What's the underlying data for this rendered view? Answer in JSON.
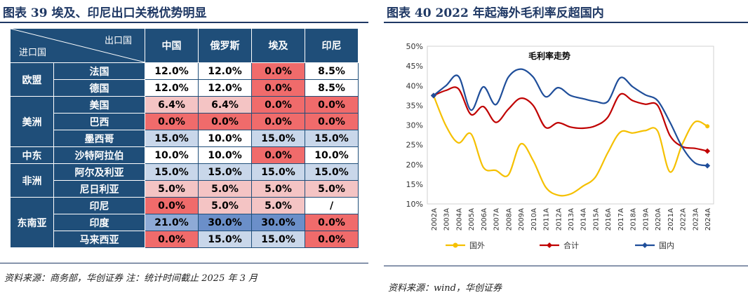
{
  "left": {
    "title": "图表 39   埃及、印尼出口关税优势明显",
    "corner_top": "出口国",
    "corner_bottom": "进口国",
    "columns": [
      "中国",
      "俄罗斯",
      "埃及",
      "印尼"
    ],
    "regions": [
      {
        "name": "欧盟",
        "rows": [
          {
            "country": "法国",
            "cells": [
              {
                "v": "12.0%",
                "c": "white"
              },
              {
                "v": "12.0%",
                "c": "white"
              },
              {
                "v": "0.0%",
                "c": "red"
              },
              {
                "v": "8.5%",
                "c": "white"
              }
            ]
          },
          {
            "country": "德国",
            "cells": [
              {
                "v": "12.0%",
                "c": "white"
              },
              {
                "v": "12.0%",
                "c": "white"
              },
              {
                "v": "0.0%",
                "c": "red"
              },
              {
                "v": "8.5%",
                "c": "white"
              }
            ]
          }
        ]
      },
      {
        "name": "美洲",
        "rows": [
          {
            "country": "美国",
            "cells": [
              {
                "v": "6.4%",
                "c": "pink"
              },
              {
                "v": "6.4%",
                "c": "pink"
              },
              {
                "v": "0.0%",
                "c": "red"
              },
              {
                "v": "0.0%",
                "c": "red"
              }
            ]
          },
          {
            "country": "巴西",
            "cells": [
              {
                "v": "0.0%",
                "c": "red"
              },
              {
                "v": "0.0%",
                "c": "red"
              },
              {
                "v": "0.0%",
                "c": "red"
              },
              {
                "v": "0.0%",
                "c": "red"
              }
            ]
          },
          {
            "country": "墨西哥",
            "cells": [
              {
                "v": "15.0%",
                "c": "lblue"
              },
              {
                "v": "10.0%",
                "c": "white"
              },
              {
                "v": "15.0%",
                "c": "lblue"
              },
              {
                "v": "15.0%",
                "c": "lblue"
              }
            ]
          }
        ]
      },
      {
        "name": "中东",
        "rows": [
          {
            "country": "沙特阿拉伯",
            "cells": [
              {
                "v": "10.0%",
                "c": "white"
              },
              {
                "v": "10.0%",
                "c": "white"
              },
              {
                "v": "0.0%",
                "c": "red"
              },
              {
                "v": "10.0%",
                "c": "white"
              }
            ]
          }
        ]
      },
      {
        "name": "非洲",
        "rows": [
          {
            "country": "阿尔及利亚",
            "cells": [
              {
                "v": "15.0%",
                "c": "lblue"
              },
              {
                "v": "15.0%",
                "c": "lblue"
              },
              {
                "v": "15.0%",
                "c": "lblue"
              },
              {
                "v": "15.0%",
                "c": "lblue"
              }
            ]
          },
          {
            "country": "尼日利亚",
            "cells": [
              {
                "v": "5.0%",
                "c": "pink"
              },
              {
                "v": "5.0%",
                "c": "pink"
              },
              {
                "v": "5.0%",
                "c": "pink"
              },
              {
                "v": "5.0%",
                "c": "pink"
              }
            ]
          }
        ]
      },
      {
        "name": "东南亚",
        "rows": [
          {
            "country": "印尼",
            "cells": [
              {
                "v": "0.0%",
                "c": "red"
              },
              {
                "v": "5.0%",
                "c": "pink"
              },
              {
                "v": "5.0%",
                "c": "pink"
              },
              {
                "v": "/",
                "c": "white"
              }
            ]
          },
          {
            "country": "印度",
            "cells": [
              {
                "v": "21.0%",
                "c": "mblue"
              },
              {
                "v": "30.0%",
                "c": "dblue"
              },
              {
                "v": "30.0%",
                "c": "dblue"
              },
              {
                "v": "0.0%",
                "c": "red"
              }
            ]
          },
          {
            "country": "马来西亚",
            "cells": [
              {
                "v": "0.0%",
                "c": "red"
              },
              {
                "v": "15.0%",
                "c": "lblue"
              },
              {
                "v": "15.0%",
                "c": "lblue"
              },
              {
                "v": "0.0%",
                "c": "red"
              }
            ]
          }
        ]
      }
    ],
    "source": "资料来源：商务部，华创证券  注：统计时间截止 2025 年 3 月"
  },
  "right": {
    "title": "图表 40   2022 年起海外毛利率反超国内",
    "source": "资料来源：wind，华创证券"
  },
  "colors": {
    "navy": "#1f4e79",
    "domestic": "#1f4e9a",
    "total": "#c00000",
    "overseas": "#f5c000"
  },
  "chart_data": {
    "type": "line",
    "title": "毛利率走势",
    "categories": [
      "2002A",
      "2003A",
      "2004A",
      "2005A",
      "2006A",
      "2007A",
      "2008A",
      "2009A",
      "2010A",
      "2011A",
      "2012A",
      "2013A",
      "2014A",
      "2015A",
      "2016A",
      "2017A",
      "2018A",
      "2019A",
      "2020A",
      "2021A",
      "2022A",
      "2023A",
      "2024A"
    ],
    "ylim": [
      0.1,
      0.5
    ],
    "yticks": [
      "10%",
      "15%",
      "20%",
      "25%",
      "30%",
      "35%",
      "40%",
      "45%",
      "50%"
    ],
    "legend_position": "bottom",
    "series": [
      {
        "name": "国外",
        "color": "#f5c000",
        "values": [
          0.375,
          0.298,
          0.255,
          0.278,
          0.193,
          0.185,
          0.173,
          0.252,
          0.21,
          0.143,
          0.122,
          0.125,
          0.145,
          0.168,
          0.23,
          0.282,
          0.28,
          0.286,
          0.285,
          0.181,
          0.253,
          0.308,
          0.297
        ]
      },
      {
        "name": "合计",
        "color": "#c00000",
        "values": [
          0.375,
          0.388,
          0.392,
          0.327,
          0.347,
          0.307,
          0.34,
          0.368,
          0.35,
          0.294,
          0.306,
          0.295,
          0.292,
          0.298,
          0.32,
          0.378,
          0.362,
          0.353,
          0.35,
          0.273,
          0.245,
          0.241,
          0.234
        ]
      },
      {
        "name": "国内",
        "color": "#1f4e9a",
        "values": [
          0.375,
          0.4,
          0.424,
          0.338,
          0.397,
          0.352,
          0.421,
          0.442,
          0.422,
          0.372,
          0.395,
          0.375,
          0.367,
          0.36,
          0.36,
          0.42,
          0.397,
          0.377,
          0.362,
          0.307,
          0.243,
          0.204,
          0.197
        ]
      }
    ]
  }
}
